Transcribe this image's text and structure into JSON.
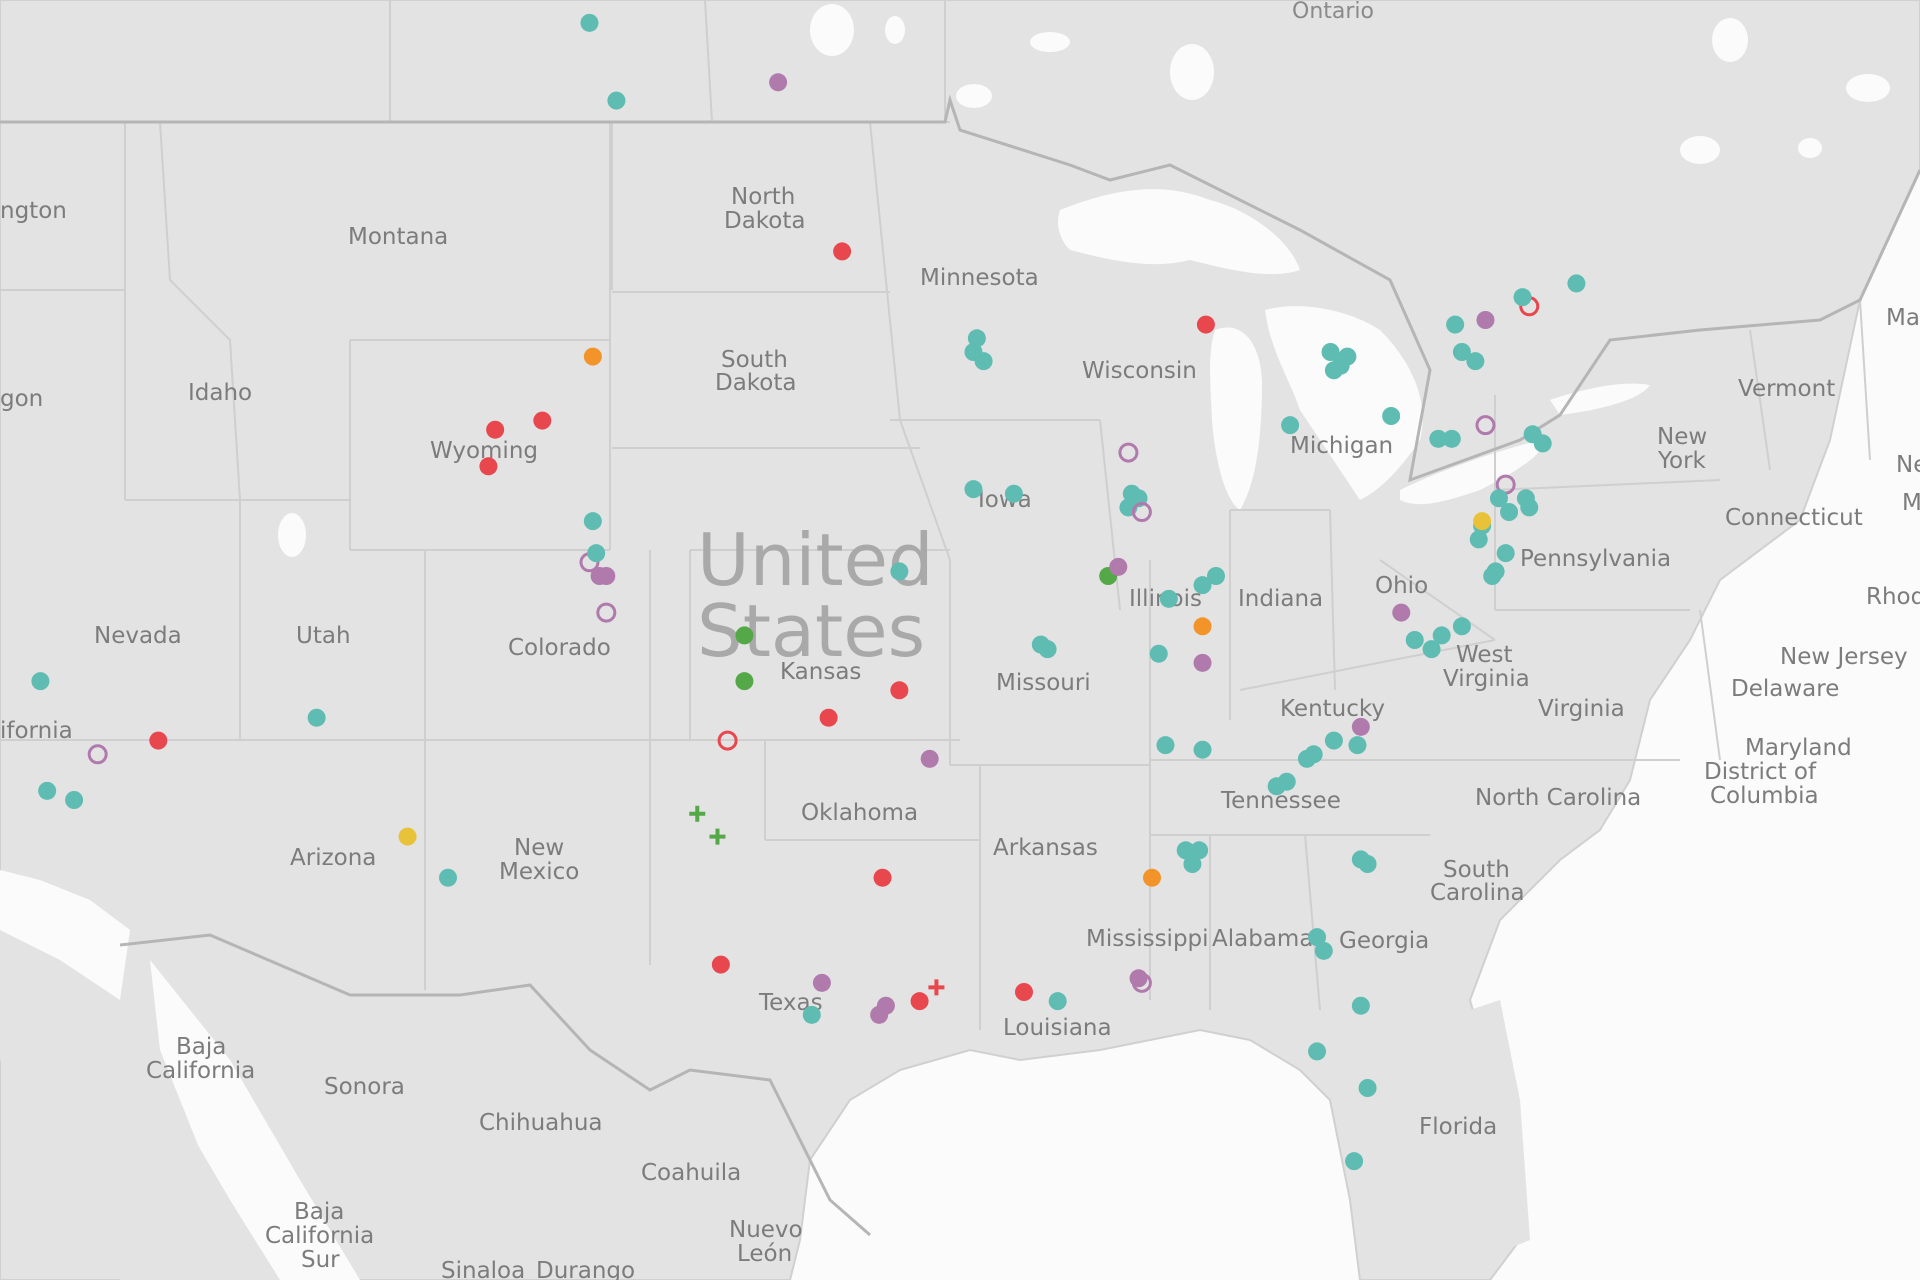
{
  "map": {
    "country_label_line1": "United",
    "country_label_line2": "States",
    "labels": {
      "ontario": "Ontario",
      "washington": "ngton",
      "oregon": "gon",
      "california": "ifornia",
      "montana": "Montana",
      "idaho": "Idaho",
      "nevada": "Nevada",
      "utah": "Utah",
      "wyoming": "Wyoming",
      "colorado": "Colorado",
      "arizona": "Arizona",
      "new_mexico_1": "New",
      "new_mexico_2": "Mexico",
      "north_dakota_1": "North",
      "north_dakota_2": "Dakota",
      "south_dakota_1": "South",
      "south_dakota_2": "Dakota",
      "kansas": "Kansas",
      "oklahoma": "Oklahoma",
      "texas": "Texas",
      "minnesota": "Minnesota",
      "iowa": "Iowa",
      "missouri": "Missouri",
      "arkansas": "Arkansas",
      "louisiana": "Louisiana",
      "wisconsin": "Wisconsin",
      "illinois": "Illinois",
      "michigan": "Michigan",
      "indiana": "Indiana",
      "ohio": "Ohio",
      "kentucky": "Kentucky",
      "tennessee": "Tennessee",
      "mississippi": "Mississippi",
      "alabama": "Alabama",
      "georgia": "Georgia",
      "florida": "Florida",
      "south_carolina_1": "South",
      "south_carolina_2": "Carolina",
      "north_carolina": "North Carolina",
      "virginia": "Virginia",
      "west_virginia_1": "West",
      "west_virginia_2": "Virginia",
      "pennsylvania": "Pennsylvania",
      "new_york_1": "New",
      "new_york_2": "York",
      "vermont": "Vermont",
      "connecticut": "Connecticut",
      "new_jersey": "New Jersey",
      "delaware": "Delaware",
      "maryland": "Maryland",
      "dc_1": "District of",
      "dc_2": "Columbia",
      "rhode": "Rhod",
      "maine": "Ma",
      "ne": "Ne",
      "m": "M",
      "baja_1": "Baja",
      "baja_2": "California",
      "baja_sur_1": "Baja",
      "baja_sur_2": "California",
      "baja_sur_3": "Sur",
      "sonora": "Sonora",
      "chihuahua": "Chihuahua",
      "coahuila": "Coahuila",
      "nuevo_leon_1": "Nuevo",
      "nuevo_leon_2": "León",
      "sinaloa": "Sinaloa",
      "durango": "Durango"
    },
    "colors": {
      "teal": "#5ebcb2",
      "red": "#e8474e",
      "purple": "#b07aad",
      "orange": "#f3942a",
      "green": "#55a847",
      "yellow": "#e8c33a"
    },
    "markers": [
      {
        "shape": "dot",
        "color": "teal",
        "x": -106.5,
        "y": 51.5
      },
      {
        "shape": "dot",
        "color": "teal",
        "x": -105.7,
        "y": 49.8
      },
      {
        "shape": "dot",
        "color": "purple",
        "x": -100.9,
        "y": 50.2
      },
      {
        "shape": "dot",
        "color": "red",
        "x": -99.0,
        "y": 46.5
      },
      {
        "shape": "dot",
        "color": "orange",
        "x": -106.4,
        "y": 44.2
      },
      {
        "shape": "dot",
        "color": "red",
        "x": -107.9,
        "y": 42.8
      },
      {
        "shape": "dot",
        "color": "red",
        "x": -109.3,
        "y": 42.6
      },
      {
        "shape": "dot",
        "color": "red",
        "x": -109.5,
        "y": 41.8
      },
      {
        "shape": "dot",
        "color": "teal",
        "x": -106.4,
        "y": 40.6
      },
      {
        "shape": "ring",
        "color": "purple",
        "x": -106.5,
        "y": 39.7
      },
      {
        "shape": "dot",
        "color": "teal",
        "x": -106.3,
        "y": 39.9
      },
      {
        "shape": "dot",
        "color": "purple",
        "x": -106.2,
        "y": 39.4
      },
      {
        "shape": "dot",
        "color": "purple",
        "x": -106.0,
        "y": 39.4
      },
      {
        "shape": "ring",
        "color": "purple",
        "x": -106.0,
        "y": 38.6
      },
      {
        "shape": "dot",
        "color": "teal",
        "x": -122.8,
        "y": 37.1
      },
      {
        "shape": "dot",
        "color": "teal",
        "x": -114.6,
        "y": 36.3
      },
      {
        "shape": "ring",
        "color": "purple",
        "x": -121.1,
        "y": 35.5
      },
      {
        "shape": "dot",
        "color": "red",
        "x": -119.3,
        "y": 35.8
      },
      {
        "shape": "dot",
        "color": "teal",
        "x": -122.6,
        "y": 34.7
      },
      {
        "shape": "dot",
        "color": "teal",
        "x": -121.8,
        "y": 34.5
      },
      {
        "shape": "dot",
        "color": "yellow",
        "x": -111.9,
        "y": 33.7
      },
      {
        "shape": "dot",
        "color": "teal",
        "x": -110.7,
        "y": 32.8
      },
      {
        "shape": "dot",
        "color": "green",
        "x": -101.9,
        "y": 38.1
      },
      {
        "shape": "dot",
        "color": "green",
        "x": -101.9,
        "y": 37.1
      },
      {
        "shape": "ring",
        "color": "red",
        "x": -102.4,
        "y": 35.8
      },
      {
        "shape": "dot",
        "color": "red",
        "x": -99.4,
        "y": 36.3
      },
      {
        "shape": "dot",
        "color": "red",
        "x": -97.3,
        "y": 36.9
      },
      {
        "shape": "cross",
        "color": "green",
        "x": -103.3,
        "y": 34.2
      },
      {
        "shape": "cross",
        "color": "green",
        "x": -102.7,
        "y": 33.7
      },
      {
        "shape": "dot",
        "color": "red",
        "x": -97.8,
        "y": 32.8
      },
      {
        "shape": "dot",
        "color": "red",
        "x": -102.6,
        "y": 30.9
      },
      {
        "shape": "dot",
        "color": "purple",
        "x": -99.6,
        "y": 30.5
      },
      {
        "shape": "dot",
        "color": "teal",
        "x": -99.9,
        "y": 29.8
      },
      {
        "shape": "dot",
        "color": "purple",
        "x": -97.9,
        "y": 29.8
      },
      {
        "shape": "dot",
        "color": "purple",
        "x": -97.7,
        "y": 30.0
      },
      {
        "shape": "dot",
        "color": "red",
        "x": -96.7,
        "y": 30.1
      },
      {
        "shape": "cross",
        "color": "red",
        "x": -96.2,
        "y": 30.4
      },
      {
        "shape": "dot",
        "color": "purple",
        "x": -96.4,
        "y": 35.4
      },
      {
        "shape": "dot",
        "color": "teal",
        "x": -97.3,
        "y": 39.5
      },
      {
        "shape": "dot",
        "color": "teal",
        "x": -95.0,
        "y": 44.6
      },
      {
        "shape": "dot",
        "color": "teal",
        "x": -95.1,
        "y": 44.3
      },
      {
        "shape": "dot",
        "color": "teal",
        "x": -94.8,
        "y": 44.1
      },
      {
        "shape": "dot",
        "color": "teal",
        "x": -95.1,
        "y": 41.3
      },
      {
        "shape": "dot",
        "color": "teal",
        "x": -93.9,
        "y": 41.2
      },
      {
        "shape": "dot",
        "color": "teal",
        "x": -93.1,
        "y": 37.9
      },
      {
        "shape": "dot",
        "color": "teal",
        "x": -92.9,
        "y": 37.8
      },
      {
        "shape": "dot",
        "color": "green",
        "x": -91.1,
        "y": 39.4
      },
      {
        "shape": "dot",
        "color": "purple",
        "x": -90.8,
        "y": 39.6
      },
      {
        "shape": "ring",
        "color": "purple",
        "x": -90.5,
        "y": 42.1
      },
      {
        "shape": "dot",
        "color": "teal",
        "x": -90.4,
        "y": 41.2
      },
      {
        "shape": "dot",
        "color": "teal",
        "x": -90.2,
        "y": 41.1
      },
      {
        "shape": "dot",
        "color": "teal",
        "x": -90.5,
        "y": 40.9
      },
      {
        "shape": "ring",
        "color": "purple",
        "x": -90.1,
        "y": 40.8
      },
      {
        "shape": "dot",
        "color": "red",
        "x": -88.2,
        "y": 44.9
      },
      {
        "shape": "dot",
        "color": "teal",
        "x": -89.3,
        "y": 38.9
      },
      {
        "shape": "dot",
        "color": "teal",
        "x": -88.3,
        "y": 39.2
      },
      {
        "shape": "dot",
        "color": "teal",
        "x": -87.9,
        "y": 39.4
      },
      {
        "shape": "dot",
        "color": "orange",
        "x": -88.3,
        "y": 38.3
      },
      {
        "shape": "dot",
        "color": "teal",
        "x": -89.6,
        "y": 37.7
      },
      {
        "shape": "dot",
        "color": "purple",
        "x": -88.3,
        "y": 37.5
      },
      {
        "shape": "dot",
        "color": "teal",
        "x": -89.4,
        "y": 35.7
      },
      {
        "shape": "dot",
        "color": "teal",
        "x": -88.3,
        "y": 35.6
      },
      {
        "shape": "dot",
        "color": "teal",
        "x": -88.8,
        "y": 33.4
      },
      {
        "shape": "dot",
        "color": "teal",
        "x": -88.4,
        "y": 33.4
      },
      {
        "shape": "dot",
        "color": "teal",
        "x": -88.6,
        "y": 33.1
      },
      {
        "shape": "dot",
        "color": "orange",
        "x": -89.8,
        "y": 32.8
      },
      {
        "shape": "dot",
        "color": "purple",
        "x": -90.2,
        "y": 30.6
      },
      {
        "shape": "ring",
        "color": "purple",
        "x": -90.1,
        "y": 30.5
      },
      {
        "shape": "dot",
        "color": "red",
        "x": -93.6,
        "y": 30.3
      },
      {
        "shape": "dot",
        "color": "teal",
        "x": -92.6,
        "y": 30.1
      },
      {
        "shape": "dot",
        "color": "teal",
        "x": -86.1,
        "y": 34.8
      },
      {
        "shape": "dot",
        "color": "teal",
        "x": -85.8,
        "y": 34.9
      },
      {
        "shape": "dot",
        "color": "teal",
        "x": -85.2,
        "y": 35.4
      },
      {
        "shape": "dot",
        "color": "teal",
        "x": -85.0,
        "y": 35.5
      },
      {
        "shape": "dot",
        "color": "teal",
        "x": -84.4,
        "y": 35.8
      },
      {
        "shape": "dot",
        "color": "teal",
        "x": -83.7,
        "y": 35.7
      },
      {
        "shape": "purple_dot_placeholder",
        "color": "purple",
        "x": -83.6,
        "y": 36.1
      },
      {
        "shape": "dot",
        "color": "teal",
        "x": -83.6,
        "y": 33.2
      },
      {
        "shape": "dot",
        "color": "teal",
        "x": -83.4,
        "y": 33.1
      },
      {
        "shape": "dot",
        "color": "teal",
        "x": -84.9,
        "y": 31.5
      },
      {
        "shape": "dot",
        "color": "teal",
        "x": -84.7,
        "y": 31.2
      },
      {
        "shape": "dot",
        "color": "teal",
        "x": -83.6,
        "y": 30.0
      },
      {
        "shape": "dot",
        "color": "teal",
        "x": -84.9,
        "y": 29.0
      },
      {
        "shape": "dot",
        "color": "teal",
        "x": -83.4,
        "y": 28.2
      },
      {
        "shape": "dot",
        "color": "teal",
        "x": -83.8,
        "y": 26.6
      },
      {
        "shape": "dot",
        "color": "purple",
        "x": -82.4,
        "y": 38.6
      },
      {
        "shape": "dot",
        "color": "teal",
        "x": -82.0,
        "y": 38.0
      },
      {
        "shape": "dot",
        "color": "teal",
        "x": -81.5,
        "y": 37.8
      },
      {
        "shape": "dot",
        "color": "teal",
        "x": -81.2,
        "y": 38.1
      },
      {
        "shape": "dot",
        "color": "teal",
        "x": -80.6,
        "y": 38.3
      },
      {
        "shape": "dot",
        "color": "teal",
        "x": -79.7,
        "y": 39.4
      },
      {
        "shape": "dot",
        "color": "teal",
        "x": -79.6,
        "y": 39.5
      },
      {
        "shape": "dot",
        "color": "teal",
        "x": -79.3,
        "y": 39.9
      },
      {
        "shape": "dot",
        "color": "teal",
        "x": -85.7,
        "y": 42.7
      },
      {
        "shape": "dot",
        "color": "teal",
        "x": -84.5,
        "y": 44.3
      },
      {
        "shape": "dot",
        "color": "teal",
        "x": -84.4,
        "y": 43.9
      },
      {
        "shape": "dot",
        "color": "teal",
        "x": -84.2,
        "y": 44.0
      },
      {
        "shape": "dot",
        "color": "teal",
        "x": -84.0,
        "y": 44.2
      },
      {
        "shape": "dot",
        "color": "teal",
        "x": -82.7,
        "y": 42.9
      },
      {
        "shape": "dot",
        "color": "teal",
        "x": -81.3,
        "y": 42.4
      },
      {
        "shape": "dot",
        "color": "teal",
        "x": -80.9,
        "y": 42.4
      },
      {
        "shape": "dot",
        "color": "teal",
        "x": -80.8,
        "y": 44.9
      },
      {
        "shape": "dot",
        "color": "teal",
        "x": -80.6,
        "y": 44.3
      },
      {
        "shape": "dot",
        "color": "teal",
        "x": -80.2,
        "y": 44.1
      },
      {
        "shape": "dot",
        "color": "purple",
        "x": -79.9,
        "y": 45.0
      },
      {
        "shape": "ring",
        "color": "red",
        "x": -78.6,
        "y": 45.3
      },
      {
        "shape": "dot",
        "color": "teal",
        "x": -78.8,
        "y": 45.5
      },
      {
        "shape": "dot",
        "color": "teal",
        "x": -77.2,
        "y": 45.8
      },
      {
        "shape": "ring",
        "color": "purple",
        "x": -79.9,
        "y": 42.7
      },
      {
        "shape": "dot",
        "color": "teal",
        "x": -78.5,
        "y": 42.5
      },
      {
        "shape": "dot",
        "color": "teal",
        "x": -78.2,
        "y": 42.3
      },
      {
        "shape": "ring",
        "color": "purple",
        "x": -79.3,
        "y": 41.4
      },
      {
        "shape": "dot",
        "color": "teal",
        "x": -79.5,
        "y": 41.1
      },
      {
        "shape": "dot",
        "color": "teal",
        "x": -80.0,
        "y": 40.5
      },
      {
        "shape": "dot",
        "color": "teal",
        "x": -80.1,
        "y": 40.2
      },
      {
        "shape": "dot",
        "color": "yellow",
        "x": -80.0,
        "y": 40.6
      },
      {
        "shape": "dot",
        "color": "teal",
        "x": -78.7,
        "y": 41.1
      },
      {
        "shape": "dot",
        "color": "teal",
        "x": -78.6,
        "y": 40.9
      },
      {
        "shape": "dot",
        "color": "teal",
        "x": -79.2,
        "y": 40.8
      }
    ]
  }
}
